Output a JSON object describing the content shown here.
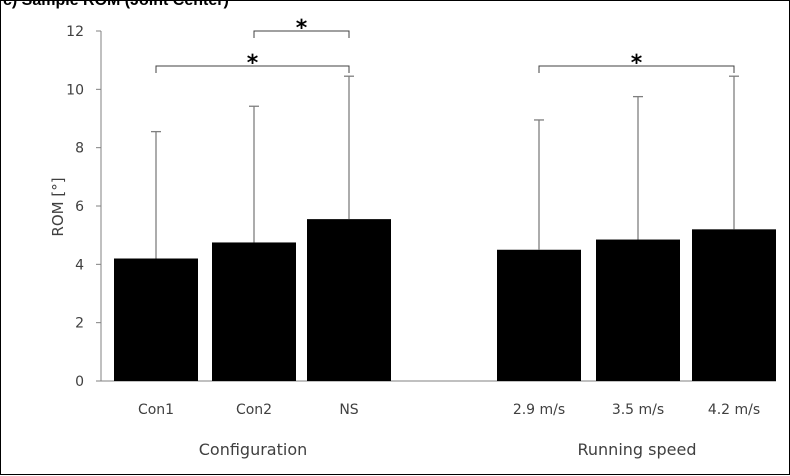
{
  "header": {
    "caption": "c) Sample ROM (Joint Center)"
  },
  "chart_data": {
    "type": "bar",
    "title": "",
    "xlabel": "",
    "ylabel": "ROM [°]",
    "ylim": [
      0,
      12
    ],
    "yticks": [
      0,
      2,
      4,
      6,
      8,
      10,
      12
    ],
    "grid": false,
    "bar_color": "#000000",
    "error_bar_color": "#7f7f7f",
    "groups": [
      {
        "label": "Configuration",
        "categories": [
          "Con1",
          "Con2",
          "NS"
        ],
        "values": [
          4.2,
          4.75,
          5.55
        ],
        "error_upper": [
          8.55,
          9.42,
          10.45
        ]
      },
      {
        "label": "Running speed",
        "categories": [
          "2.9 m/s",
          "3.5 m/s",
          "4.2 m/s"
        ],
        "values": [
          4.5,
          4.85,
          5.2
        ],
        "error_upper": [
          8.95,
          9.75,
          10.45
        ]
      }
    ],
    "significance": [
      {
        "group": 0,
        "from": 1,
        "to": 2,
        "level": 12.0,
        "label": "*"
      },
      {
        "group": 0,
        "from": 0,
        "to": 2,
        "level": 10.8,
        "label": "*"
      },
      {
        "group": 1,
        "from": 0,
        "to": 2,
        "level": 10.8,
        "label": "*"
      }
    ]
  }
}
